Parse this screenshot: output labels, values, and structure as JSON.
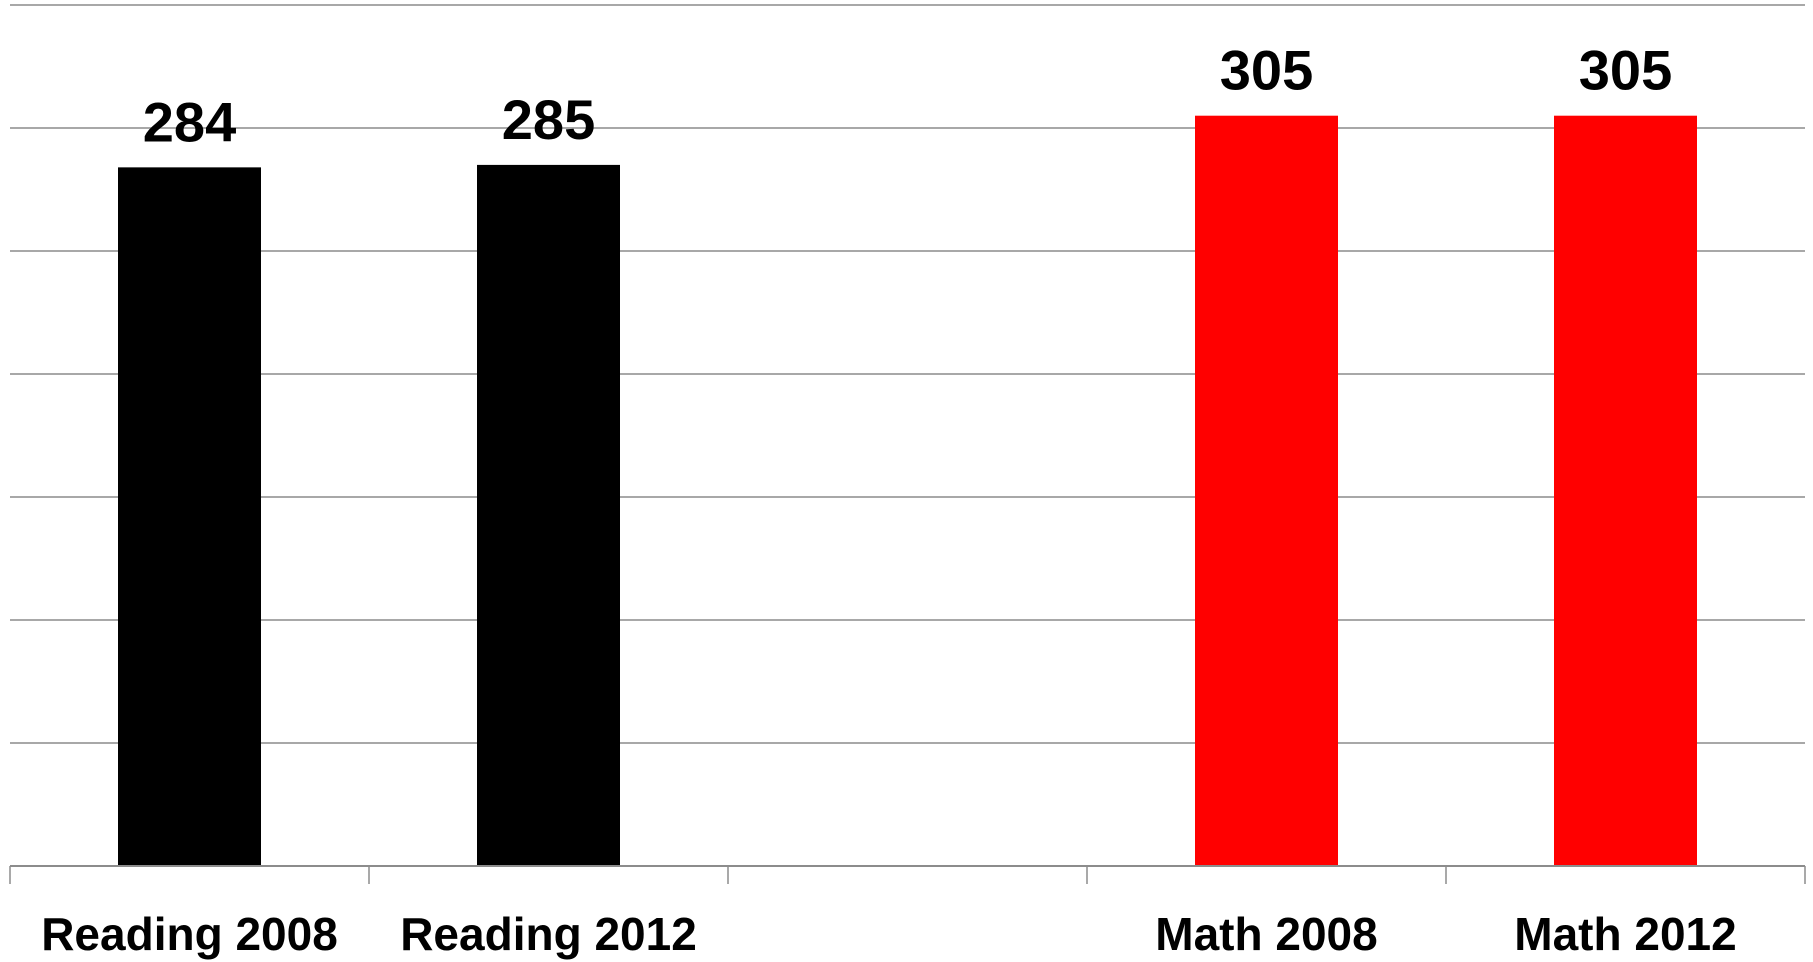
{
  "chart_data": {
    "type": "bar",
    "categories": [
      "Reading 2008",
      "Reading 2012",
      "",
      "Math 2008",
      "Math 2012"
    ],
    "values": [
      284,
      285,
      null,
      305,
      305
    ],
    "bar_colors": [
      "#000000",
      "#000000",
      null,
      "#ff0000",
      "#ff0000"
    ],
    "ylim": [
      0,
      350
    ],
    "y_gridline_step": 50,
    "grid": true,
    "legend": "none",
    "data_labels": true,
    "title": "",
    "xlabel": "",
    "ylabel": ""
  }
}
